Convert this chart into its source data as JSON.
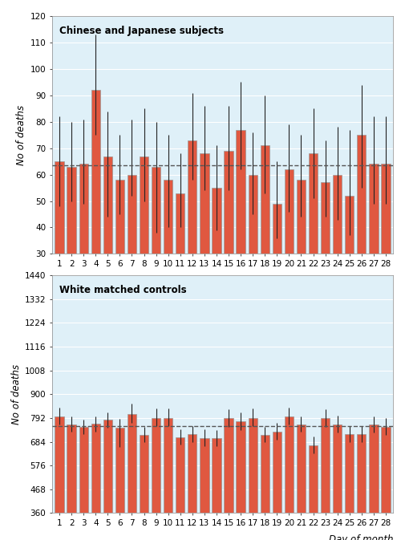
{
  "top": {
    "title": "Chinese and Japanese subjects",
    "ylabel": "No of deaths",
    "xlabel": "Day of month",
    "ylim": [
      30,
      120
    ],
    "yticks": [
      30,
      40,
      50,
      60,
      70,
      80,
      90,
      100,
      110,
      120
    ],
    "dashed_line": 63.5,
    "bars": [
      65,
      63,
      64,
      92,
      67,
      58,
      60,
      67,
      63,
      58,
      53,
      73,
      68,
      55,
      69,
      77,
      60,
      71,
      49,
      62,
      58,
      68,
      57,
      60,
      52,
      75,
      64,
      64
    ],
    "err_hi": [
      82,
      80,
      81,
      113,
      84,
      75,
      81,
      85,
      80,
      75,
      68,
      91,
      86,
      71,
      86,
      95,
      76,
      90,
      65,
      79,
      75,
      85,
      73,
      78,
      77,
      94,
      82,
      82
    ],
    "err_lo": [
      48,
      50,
      49,
      75,
      44,
      45,
      52,
      50,
      38,
      40,
      40,
      58,
      54,
      39,
      54,
      62,
      45,
      53,
      36,
      46,
      44,
      51,
      44,
      43,
      37,
      55,
      49,
      49
    ]
  },
  "bottom": {
    "title": "White matched controls",
    "ylabel": "No of deaths",
    "xlabel": "Day of month",
    "ylim": [
      360,
      1440
    ],
    "yticks": [
      360,
      468,
      576,
      684,
      792,
      900,
      1008,
      1116,
      1224,
      1332,
      1440
    ],
    "dashed_line": 754,
    "bars": [
      800,
      762,
      752,
      766,
      783,
      748,
      810,
      716,
      792,
      792,
      704,
      718,
      700,
      700,
      790,
      776,
      793,
      715,
      730,
      800,
      762,
      668,
      790,
      763,
      718,
      718,
      762,
      750
    ],
    "err_hi": [
      840,
      798,
      785,
      800,
      818,
      788,
      856,
      752,
      834,
      834,
      742,
      756,
      740,
      738,
      832,
      816,
      835,
      752,
      768,
      840,
      800,
      706,
      832,
      804,
      756,
      756,
      800,
      792
    ],
    "err_lo": [
      762,
      728,
      718,
      730,
      748,
      660,
      770,
      682,
      754,
      754,
      670,
      682,
      664,
      664,
      752,
      738,
      754,
      682,
      694,
      762,
      728,
      630,
      752,
      726,
      682,
      682,
      726,
      714
    ]
  },
  "bar_color": "#e05840",
  "bar_edge_color": "#999999",
  "background_color": "#dff0f8",
  "fig_background": "#ffffff",
  "error_color": "#222222",
  "days": [
    1,
    2,
    3,
    4,
    5,
    6,
    7,
    8,
    9,
    10,
    11,
    12,
    13,
    14,
    15,
    16,
    17,
    18,
    19,
    20,
    21,
    22,
    23,
    24,
    25,
    26,
    27,
    28
  ]
}
